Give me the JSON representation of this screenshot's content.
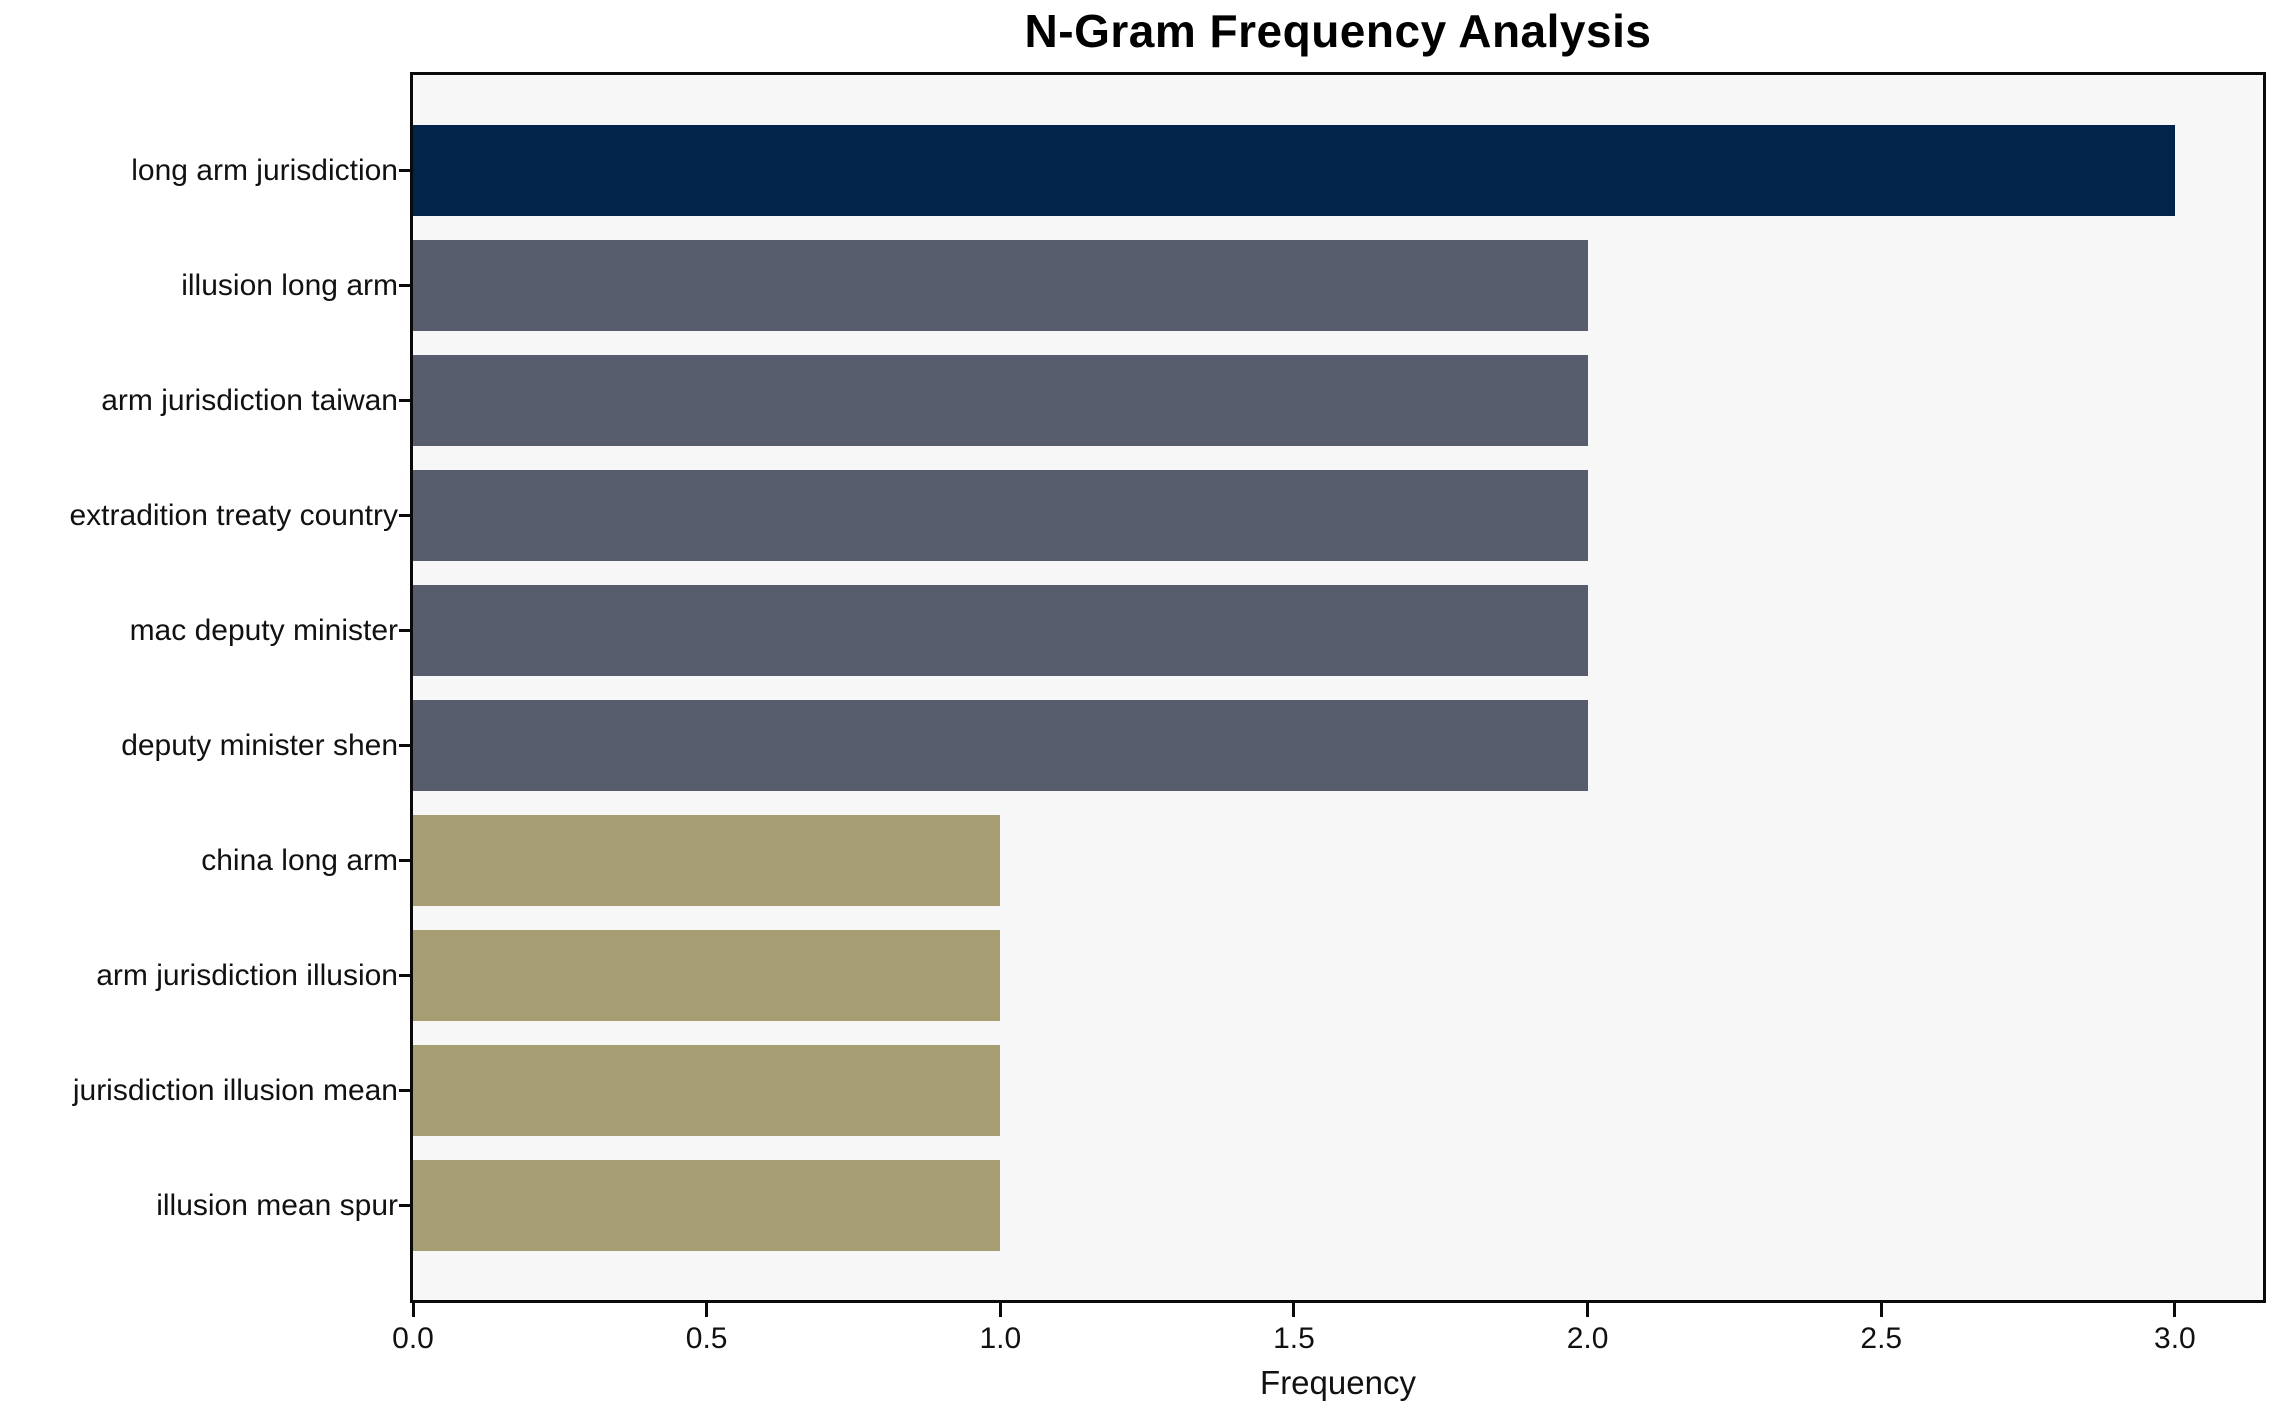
{
  "figure": {
    "background": "#ffffff",
    "plot_background": "#f7f7f8",
    "spine_color": "#0a0a0a",
    "text_color": "#111111"
  },
  "chart_data": {
    "type": "bar",
    "orientation": "horizontal",
    "title": "N-Gram Frequency Analysis",
    "xlabel": "Frequency",
    "ylabel": "",
    "categories": [
      "long arm jurisdiction",
      "illusion long arm",
      "arm jurisdiction taiwan",
      "extradition treaty country",
      "mac deputy minister",
      "deputy minister shen",
      "china long arm",
      "arm jurisdiction illusion",
      "jurisdiction illusion mean",
      "illusion mean spur"
    ],
    "values": [
      3,
      2,
      2,
      2,
      2,
      2,
      1,
      1,
      1,
      1
    ],
    "bar_colors": [
      "#02244a",
      "#575d6c",
      "#575d6c",
      "#575d6c",
      "#575d6c",
      "#575d6c",
      "#a69d72",
      "#a69d72",
      "#a69d72",
      "#a69d72"
    ],
    "x_ticks": [
      0.0,
      0.5,
      1.0,
      1.5,
      2.0,
      2.5,
      3.0
    ],
    "x_tick_labels": [
      "0.0",
      "0.5",
      "1.0",
      "1.5",
      "2.0",
      "2.5",
      "3.0"
    ],
    "xlim": [
      0,
      3.15
    ],
    "grid": false,
    "legend": null
  }
}
